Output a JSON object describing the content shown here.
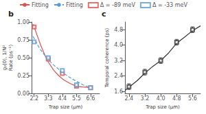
{
  "chart_data": [
    {
      "type": "line",
      "title": "b",
      "xlabel": "Trap size (μm)",
      "ylabel": "g₂(0), 1/N²\nRate (ps⁻¹)",
      "xlim": [
        2.0,
        7.3
      ],
      "ylim": [
        0.0,
        1.0
      ],
      "xticks": [
        2.2,
        3.3,
        4.4,
        5.5,
        6.6
      ],
      "yticks": [
        {
          "value": 0.0,
          "label": "0.00"
        },
        0.25,
        {
          "value": 0.5,
          "label": "0.50"
        },
        0.75,
        {
          "value": 1.0,
          "label": "1.00"
        }
      ],
      "grid": false,
      "legend": "top",
      "series": [
        {
          "name": "Fitting",
          "type": "line",
          "color": "#d9534f",
          "line_style": "solid",
          "x": [
            2.1,
            2.3,
            2.5,
            2.7,
            3.0,
            3.3,
            3.7,
            4.1,
            4.5,
            5.0,
            5.5,
            6.0,
            6.6
          ],
          "values": [
            0.97,
            0.88,
            0.78,
            0.68,
            0.55,
            0.44,
            0.33,
            0.25,
            0.19,
            0.14,
            0.1,
            0.09,
            0.08
          ]
        },
        {
          "name": "Fitting",
          "type": "line",
          "color": "#5b9bd5",
          "line_style": "dashed",
          "x": [
            2.1,
            2.3,
            2.5,
            2.7,
            3.0,
            3.3,
            3.7,
            4.1,
            4.5,
            5.0,
            5.5,
            6.0,
            6.6
          ],
          "values": [
            0.8,
            0.74,
            0.67,
            0.61,
            0.54,
            0.47,
            0.4,
            0.34,
            0.28,
            0.22,
            0.17,
            0.12,
            0.08
          ]
        },
        {
          "name": "Δ = -89 meV",
          "type": "scatter",
          "color": "#d9534f",
          "marker": "square",
          "x": [
            2.2,
            3.3,
            4.4,
            5.5,
            6.6
          ],
          "values": [
            0.93,
            0.48,
            0.28,
            0.1,
            0.08
          ]
        },
        {
          "name": "Δ = -33 meV",
          "type": "scatter",
          "color": "#5b9bd5",
          "marker": "square",
          "x": [
            2.2,
            3.3,
            4.4,
            5.5,
            6.6
          ],
          "values": [
            0.72,
            0.5,
            0.32,
            0.12,
            0.08
          ]
        }
      ]
    },
    {
      "type": "line",
      "title": "c",
      "xlabel": "Trap size (μm)",
      "ylabel": "Temporal coherence (ps)",
      "xlim": [
        2.2,
        6.0
      ],
      "ylim": [
        1.5,
        5.2
      ],
      "xticks": [
        2.4,
        3.2,
        {
          "value": 4.0,
          "label": "4.0"
        },
        4.8,
        5.6
      ],
      "yticks": [
        1.6,
        2.4,
        3.2,
        {
          "value": 4.0,
          "label": "4.0"
        },
        4.8
      ],
      "grid": false,
      "series": [
        {
          "type": "line",
          "color": "#333333",
          "line_style": "solid",
          "x": [
            2.2,
            2.5,
            2.8,
            3.2,
            3.6,
            4.0,
            4.4,
            4.8,
            5.2,
            5.6,
            6.0
          ],
          "values": [
            1.65,
            1.9,
            2.15,
            2.55,
            2.9,
            3.2,
            3.6,
            4.1,
            4.42,
            4.75,
            5.0
          ]
        },
        {
          "type": "scatter",
          "color": "#333333",
          "marker": "square",
          "x": [
            2.4,
            3.2,
            4.0,
            4.8,
            5.6
          ],
          "values": [
            1.85,
            2.6,
            3.2,
            4.15,
            4.8
          ],
          "errors": [
            0.15,
            0.15,
            0.15,
            0.15,
            0.15
          ]
        }
      ]
    }
  ]
}
